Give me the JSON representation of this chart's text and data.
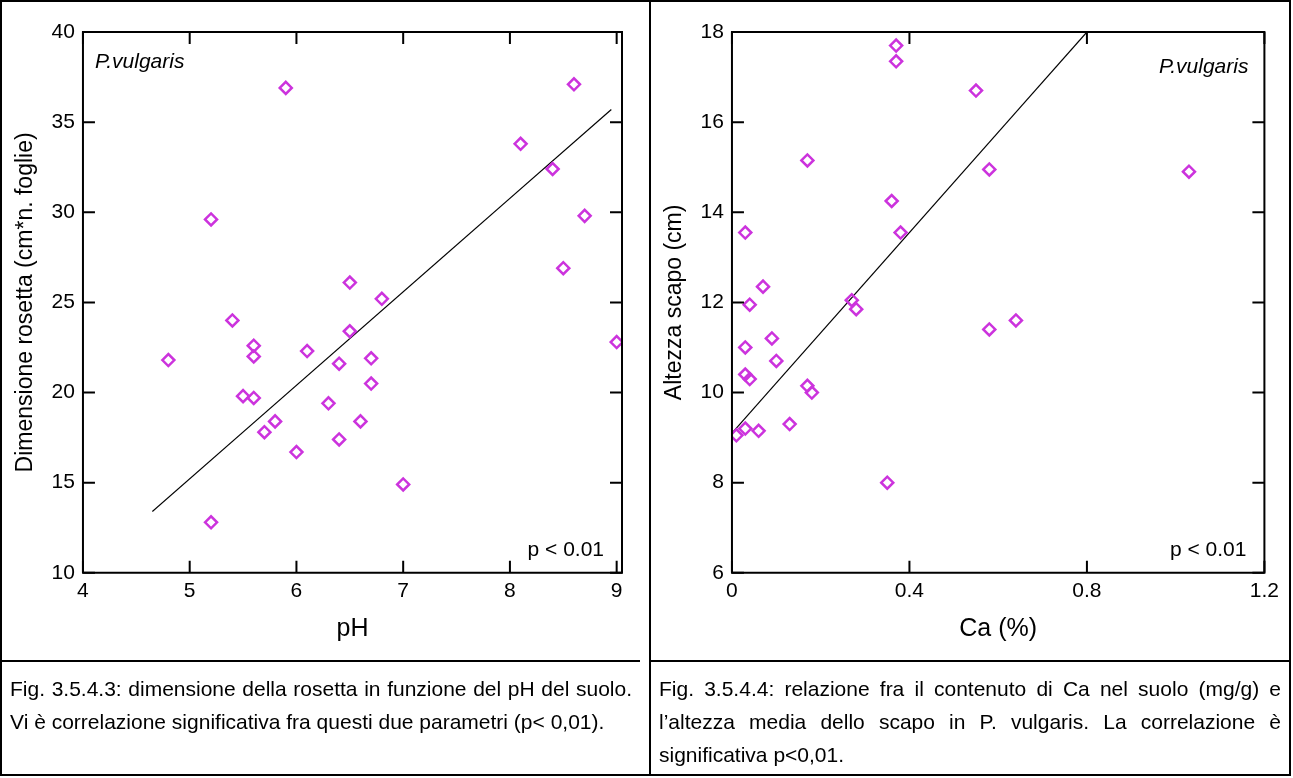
{
  "chart_data": [
    {
      "type": "scatter",
      "xlabel": "pH",
      "ylabel": "Dimensione rosetta (cm*n. foglie)",
      "xlim": [
        4,
        9.05
      ],
      "ylim": [
        10,
        40
      ],
      "xticks": [
        4,
        5,
        6,
        7,
        8,
        9
      ],
      "yticks": [
        10,
        15,
        20,
        25,
        30,
        35,
        40
      ],
      "grid": false,
      "legend": false,
      "marker": "diamond",
      "annotations": [
        "P.vulgaris",
        "p < 0.01",
        "Fig. 3.5.4.3: dimensione della rosetta in funzione del pH del suolo. Vi è correlazione significativa fra questi due parametri (p< 0,01)."
      ],
      "series": [
        {
          "color": "#cc33dd",
          "x": [
            4.8,
            5.2,
            5.2,
            5.4,
            5.5,
            5.6,
            5.6,
            5.6,
            5.7,
            5.8,
            5.9,
            6.0,
            6.1,
            6.3,
            6.4,
            6.4,
            6.5,
            6.5,
            6.6,
            6.7,
            6.7,
            6.8,
            7.0,
            8.1,
            8.4,
            8.5,
            8.6,
            8.7,
            9.0
          ],
          "values": [
            21.8,
            29.6,
            12.8,
            24.0,
            19.8,
            22.6,
            22.0,
            19.7,
            17.8,
            18.4,
            36.9,
            16.7,
            22.3,
            19.4,
            21.6,
            17.4,
            26.1,
            23.4,
            18.4,
            21.9,
            20.5,
            25.2,
            14.9,
            33.8,
            32.4,
            26.9,
            37.1,
            29.8,
            22.8
          ]
        },
        {
          "type": "line",
          "color": "#000000",
          "marker": "none",
          "x": [
            4.65,
            8.95
          ],
          "values": [
            13.4,
            35.7
          ]
        }
      ]
    },
    {
      "type": "scatter",
      "xlabel": "Ca (%)",
      "ylabel": "Altezza scapo (cm)",
      "xlim": [
        0,
        1.2
      ],
      "ylim": [
        6,
        18
      ],
      "xticks": [
        0,
        0.4,
        0.8,
        1.2
      ],
      "yticks": [
        6,
        8,
        10,
        12,
        14,
        16,
        18
      ],
      "grid": false,
      "legend": false,
      "marker": "diamond",
      "annotations": [
        "P.vulgaris",
        "p < 0.01",
        "Fig. 3.5.4.4:  relazione fra il contenuto di Ca nel suolo (mg/g) e l’altezza media dello scapo in P. vulgaris. La correlazione è significativa p<0,01."
      ],
      "series": [
        {
          "color": "#cc33dd",
          "x": [
            0.37,
            0.37,
            0.55,
            0.17,
            0.58,
            1.03,
            0.36,
            0.38,
            0.03,
            0.07,
            0.04,
            0.27,
            0.28,
            0.09,
            0.58,
            0.64,
            0.03,
            0.1,
            0.03,
            0.04,
            0.17,
            0.18,
            0.03,
            0.06,
            0.01,
            0.13,
            0.35
          ],
          "values": [
            17.7,
            17.35,
            16.7,
            15.15,
            14.95,
            14.9,
            14.25,
            13.55,
            13.55,
            12.35,
            11.95,
            12.05,
            11.85,
            11.2,
            11.4,
            11.6,
            11.0,
            10.7,
            10.4,
            10.3,
            10.15,
            10.0,
            9.2,
            9.15,
            9.05,
            9.3,
            8.0
          ]
        },
        {
          "type": "line",
          "color": "#000000",
          "marker": "none",
          "x": [
            0,
            0.8
          ],
          "values": [
            9.1,
            18
          ]
        }
      ]
    }
  ]
}
